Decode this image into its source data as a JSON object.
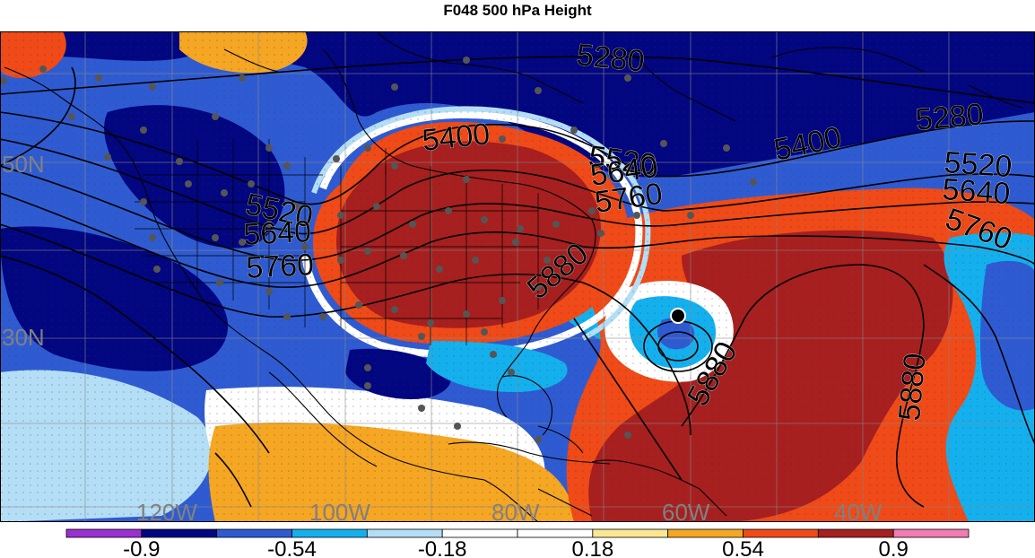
{
  "title": "F048 500 hPa Height",
  "map": {
    "longitude_labels": [
      "120W",
      "100W",
      "80W",
      "60W",
      "40W"
    ],
    "latitude_labels": [
      "50N",
      "30N"
    ],
    "contour_labels": [
      "5280",
      "5280",
      "5400",
      "5400",
      "5520",
      "5520",
      "5520",
      "5640",
      "5640",
      "5640",
      "5760",
      "5760",
      "5760",
      "5880",
      "5880",
      "5880"
    ],
    "label_color": "#808080",
    "contour_color": "#000000"
  },
  "colorbar": {
    "colors": [
      "#9b30d0",
      "#020680",
      "#2f5bd2",
      "#14b0ee",
      "#b3def5",
      "#ffffff",
      "#ffffff",
      "#fbe792",
      "#f5a623",
      "#ef4a17",
      "#a71f1f",
      "#f27bb1"
    ],
    "tick_labels": [
      "-0.9",
      "-0.54",
      "-0.18",
      "0.18",
      "0.54",
      "0.9"
    ]
  }
}
